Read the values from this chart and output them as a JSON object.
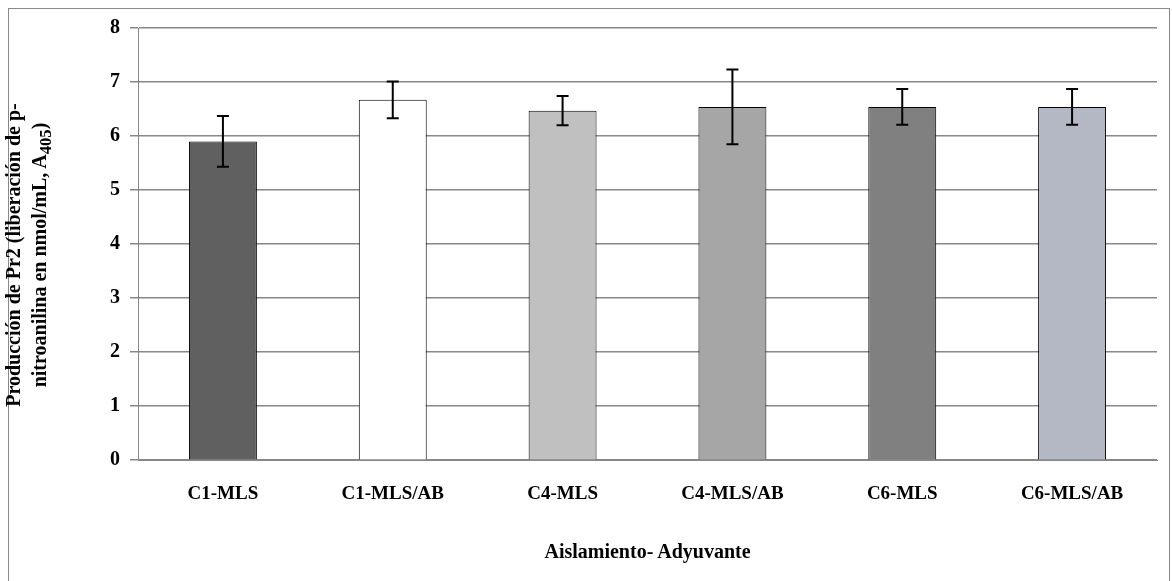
{
  "chart_data": {
    "type": "bar",
    "xlabel": "Aislamiento- Adyuvante",
    "ylabel": "Producción de Pr2 (liberación de p-nitroanilina en nmol/mL, A$_{405}$)",
    "categories": [
      "C1-MLS",
      "C1-MLS/AB",
      "C4-MLS",
      "C4-MLS/AB",
      "C6-MLS",
      "C6-MLS/AB"
    ],
    "values": [
      5.9,
      6.67,
      6.47,
      6.54,
      6.54,
      6.54
    ],
    "errors": [
      0.47,
      0.34,
      0.27,
      0.69,
      0.33,
      0.33
    ],
    "colors": [
      "#606060",
      "#ffffff",
      "#c0c0c0",
      "#a6a6a6",
      "#808080",
      "#b4b8c4"
    ],
    "ylim": [
      0,
      8
    ],
    "yticks": [
      0,
      1,
      2,
      3,
      4,
      5,
      6,
      7,
      8
    ],
    "grid": "y",
    "legend": false
  }
}
